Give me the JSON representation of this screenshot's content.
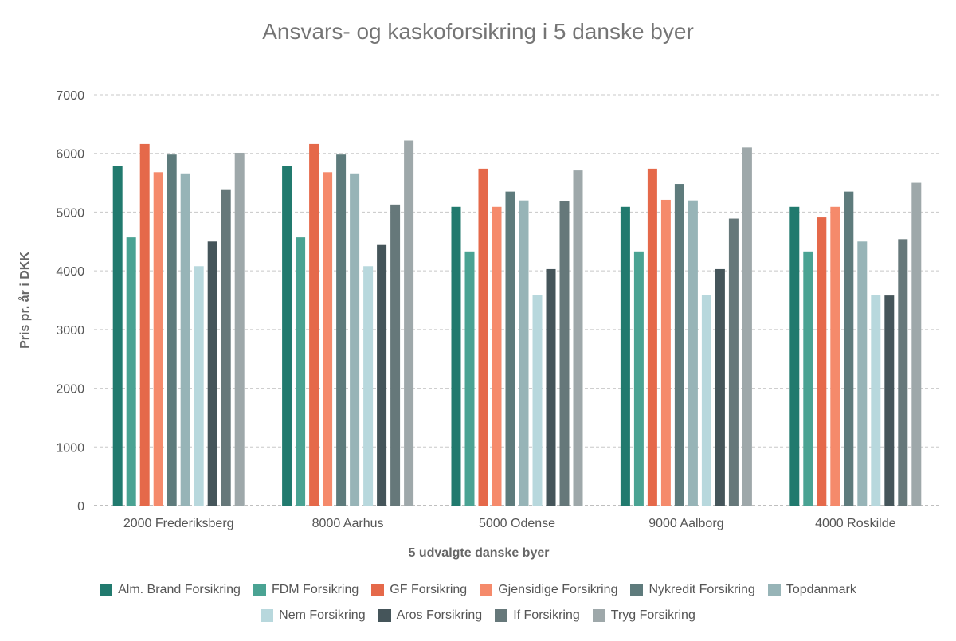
{
  "chart_data": {
    "type": "bar",
    "title": "Ansvars- og kaskoforsikring i 5 danske byer",
    "xlabel": "5 udvalgte danske byer",
    "ylabel": "Pris pr. år i DKK",
    "ylim": [
      0,
      7000
    ],
    "yticks": [
      "0",
      "1000",
      "2000",
      "3000",
      "4000",
      "5000",
      "6000",
      "7000"
    ],
    "grid": true,
    "legend_position": "bottom",
    "categories": [
      "2000 Frederiksberg",
      "8000 Aarhus",
      "5000 Odense",
      "9000 Aalborg",
      "4000 Roskilde"
    ],
    "series": [
      {
        "name": "Alm. Brand Forsikring",
        "color": "#217a6e",
        "values": [
          5780,
          5780,
          5090,
          5090,
          5090
        ]
      },
      {
        "name": "FDM Forsikring",
        "color": "#4aa393",
        "values": [
          4570,
          4570,
          4330,
          4330,
          4330
        ]
      },
      {
        "name": "GF Forsikring",
        "color": "#e5694a",
        "values": [
          6160,
          6160,
          5740,
          5740,
          4910
        ]
      },
      {
        "name": "Gjensidige Forsikring",
        "color": "#f58a6b",
        "values": [
          5680,
          5680,
          5090,
          5210,
          5090
        ]
      },
      {
        "name": "Nykredit Forsikring",
        "color": "#5e7b7c",
        "values": [
          5980,
          5980,
          5350,
          5480,
          5350
        ]
      },
      {
        "name": "Topdanmark",
        "color": "#97b4b7",
        "values": [
          5660,
          5660,
          5200,
          5200,
          4500
        ]
      },
      {
        "name": "Nem Forsikring",
        "color": "#b8d8dd",
        "values": [
          4080,
          4080,
          3590,
          3590,
          3590
        ]
      },
      {
        "name": "Aros Forsikring",
        "color": "#45555a",
        "values": [
          4500,
          4440,
          4030,
          4030,
          3580
        ]
      },
      {
        "name": "If Forsikring",
        "color": "#66787a",
        "values": [
          5390,
          5130,
          5190,
          4890,
          4540
        ]
      },
      {
        "name": "Tryg Forsikring",
        "color": "#9ea8aa",
        "values": [
          6010,
          6220,
          5710,
          6100,
          5500
        ]
      }
    ]
  }
}
